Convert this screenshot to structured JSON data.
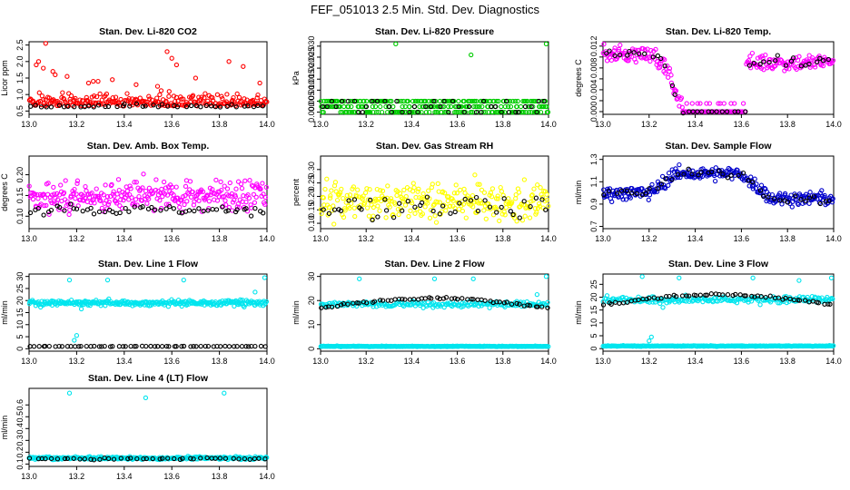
{
  "figure": {
    "title": "FEF_051013  2.5 Min. Std. Dev. Diagnostics"
  },
  "colors": {
    "red": "#ff0000",
    "green": "#00cc00",
    "magenta": "#ff00ff",
    "yellow": "#ffff00",
    "blue": "#0000cc",
    "cyan": "#00e5ee",
    "black": "#000000"
  },
  "chart_data": [
    {
      "type": "scatter",
      "title": "Stan. Dev. Li-820 CO2",
      "ylabel": "Licor ppm",
      "xlim": [
        13.0,
        14.0
      ],
      "ylim": [
        0.4,
        2.6
      ],
      "xticks": [
        13.0,
        13.2,
        13.4,
        13.6,
        13.8,
        14.0
      ],
      "xtick_labels": [
        "13.0",
        "13.2",
        "13.4",
        "13.6",
        "13.8",
        "14.0"
      ],
      "yticks": [
        0.5,
        1.0,
        1.5,
        2.0,
        2.5
      ],
      "ytick_labels": [
        "0.5",
        "1.0",
        "1.5",
        "2.0",
        "2.5"
      ],
      "series": [
        {
          "name": "all",
          "color": "#ff0000",
          "base": 0.75,
          "spread": 0.35,
          "n": 260,
          "outliers": [
            [
              13.07,
              2.55
            ],
            [
              13.03,
              1.9
            ],
            [
              13.04,
              2.0
            ],
            [
              13.06,
              1.8
            ],
            [
              13.1,
              1.7
            ],
            [
              13.11,
              1.6
            ],
            [
              13.16,
              1.55
            ],
            [
              13.25,
              1.35
            ],
            [
              13.27,
              1.4
            ],
            [
              13.29,
              1.4
            ],
            [
              13.35,
              1.45
            ],
            [
              13.45,
              1.3
            ],
            [
              13.54,
              1.25
            ],
            [
              13.58,
              2.3
            ],
            [
              13.6,
              2.1
            ],
            [
              13.62,
              1.9
            ],
            [
              13.7,
              1.5
            ],
            [
              13.84,
              2.0
            ],
            [
              13.9,
              1.85
            ],
            [
              13.97,
              1.35
            ]
          ]
        },
        {
          "name": "subset",
          "color": "#000000",
          "base": 0.62,
          "spread": 0.08,
          "n": 45
        }
      ]
    },
    {
      "type": "scatter",
      "title": "Stan. Dev. Li-820 Pressure",
      "ylabel": "kPa",
      "xlim": [
        13.0,
        14.0
      ],
      "ylim": [
        -0.001,
        0.032
      ],
      "xticks": [
        13.0,
        13.2,
        13.4,
        13.6,
        13.8,
        14.0
      ],
      "xtick_labels": [
        "13.0",
        "13.2",
        "13.4",
        "13.6",
        "13.8",
        "14.0"
      ],
      "yticks": [
        0.0,
        0.005,
        0.01,
        0.015,
        0.02,
        0.025,
        0.03
      ],
      "ytick_labels": [
        "0.000",
        "0.005",
        "0.010",
        "0.015",
        "0.020",
        "0.025",
        "0.030"
      ],
      "series": [
        {
          "name": "all",
          "color": "#00cc00",
          "levels": [
            0.0,
            0.0025,
            0.005
          ],
          "n": 300,
          "outliers": [
            [
              13.33,
              0.031
            ],
            [
              13.66,
              0.026
            ],
            [
              13.99,
              0.031
            ]
          ]
        },
        {
          "name": "subset",
          "color": "#000000",
          "levels": [
            0.0,
            0.0025,
            0.005
          ],
          "n": 45
        }
      ]
    },
    {
      "type": "scatter",
      "title": "Stan. Dev. Li-820 Temp.",
      "ylabel": "degrees C",
      "xlim": [
        13.0,
        14.0
      ],
      "ylim": [
        -0.0005,
        0.0128
      ],
      "xticks": [
        13.0,
        13.2,
        13.4,
        13.6,
        13.8,
        14.0
      ],
      "xtick_labels": [
        "13.0",
        "13.2",
        "13.4",
        "13.6",
        "13.8",
        "14.0"
      ],
      "yticks": [
        0.0,
        0.002,
        0.004,
        0.006,
        0.008,
        0.01,
        0.012
      ],
      "ytick_labels": [
        "0.000",
        "",
        "0.004",
        "",
        "0.008",
        "",
        "0.012"
      ],
      "series": [
        {
          "name": "all",
          "color": "#ff00ff",
          "n": 260
        },
        {
          "name": "subset",
          "color": "#000000",
          "n": 45
        }
      ]
    },
    {
      "type": "scatter",
      "title": "Stan. Dev. Amb. Box Temp.",
      "ylabel": "degrees C",
      "xlim": [
        13.0,
        14.0
      ],
      "ylim": [
        0.07,
        0.245
      ],
      "xticks": [
        13.0,
        13.2,
        13.4,
        13.6,
        13.8,
        14.0
      ],
      "xtick_labels": [
        "13.0",
        "13.2",
        "13.4",
        "13.6",
        "13.8",
        "14.0"
      ],
      "yticks": [
        0.1,
        0.15,
        0.2
      ],
      "ytick_labels": [
        "0.10",
        "0.15",
        "0.20"
      ],
      "series": [
        {
          "name": "all",
          "color": "#ff00ff",
          "base": 0.15,
          "spread": 0.035,
          "n": 300
        },
        {
          "name": "subset",
          "color": "#000000",
          "base": 0.115,
          "spread": 0.012,
          "n": 55
        }
      ]
    },
    {
      "type": "scatter",
      "title": "Stan. Dev. Gas Stream RH",
      "ylabel": "percent",
      "xlim": [
        13.0,
        14.0
      ],
      "ylim": [
        0.08,
        0.35
      ],
      "xticks": [
        13.0,
        13.2,
        13.4,
        13.6,
        13.8,
        14.0
      ],
      "xtick_labels": [
        "13.0",
        "13.2",
        "13.4",
        "13.6",
        "13.8",
        "14.0"
      ],
      "yticks": [
        0.1,
        0.15,
        0.2,
        0.25,
        0.3
      ],
      "ytick_labels": [
        "0.10",
        "0.15",
        "0.20",
        "0.25",
        "0.30"
      ],
      "series": [
        {
          "name": "all",
          "color": "#ffff00",
          "base": 0.18,
          "spread": 0.07,
          "n": 280
        },
        {
          "name": "subset",
          "color": "#000000",
          "base": 0.16,
          "spread": 0.05,
          "n": 45
        }
      ]
    },
    {
      "type": "scatter",
      "title": "Stan. Dev. Sample Flow",
      "ylabel": "ml/min",
      "xlim": [
        13.0,
        14.0
      ],
      "ylim": [
        0.68,
        1.33
      ],
      "xticks": [
        13.0,
        13.2,
        13.4,
        13.6,
        13.8,
        14.0
      ],
      "xtick_labels": [
        "13.0",
        "13.2",
        "13.4",
        "13.6",
        "13.8",
        "14.0"
      ],
      "yticks": [
        0.7,
        0.9,
        1.1,
        1.3
      ],
      "ytick_labels": [
        "0.7",
        "0.9",
        "1.1",
        "1.3"
      ],
      "series": [
        {
          "name": "all",
          "color": "#0000cc",
          "n": 280
        },
        {
          "name": "subset",
          "color": "#000000",
          "n": 45
        }
      ]
    },
    {
      "type": "scatter",
      "title": "Stan. Dev. Line 1 Flow",
      "ylabel": "ml/min",
      "xlim": [
        13.0,
        14.0
      ],
      "ylim": [
        -1,
        31
      ],
      "xticks": [
        13.0,
        13.2,
        13.4,
        13.6,
        13.8,
        14.0
      ],
      "xtick_labels": [
        "13.0",
        "13.2",
        "13.4",
        "13.6",
        "13.8",
        "14.0"
      ],
      "yticks": [
        0,
        5,
        10,
        15,
        20,
        25,
        30
      ],
      "ytick_labels": [
        "0",
        "5",
        "10",
        "15",
        "20",
        "25",
        "30"
      ],
      "series": [
        {
          "name": "band",
          "color": "#00e5ee",
          "base": 19,
          "spread": 1.2,
          "n": 300,
          "outliers": [
            [
              13.17,
              28.5
            ],
            [
              13.33,
              28.5
            ],
            [
              13.65,
              28.5
            ],
            [
              13.95,
              23.5
            ],
            [
              13.99,
              29.5
            ],
            [
              13.2,
              5.5
            ],
            [
              13.19,
              3.5
            ],
            [
              13.22,
              16.5
            ]
          ]
        },
        {
          "name": "floor",
          "color": "#000000",
          "base": 1,
          "spread": 0.1,
          "n": 60
        }
      ]
    },
    {
      "type": "scatter",
      "title": "Stan. Dev. Line 2 Flow",
      "ylabel": "ml/min",
      "xlim": [
        13.0,
        14.0
      ],
      "ylim": [
        -1,
        31
      ],
      "xticks": [
        13.0,
        13.2,
        13.4,
        13.6,
        13.8,
        14.0
      ],
      "xtick_labels": [
        "13.0",
        "13.2",
        "13.4",
        "13.6",
        "13.8",
        "14.0"
      ],
      "yticks": [
        0,
        10,
        20,
        30
      ],
      "ytick_labels": [
        "0",
        "10",
        "20",
        "30"
      ],
      "series": [
        {
          "name": "floor",
          "color": "#00e5ee",
          "base": 1,
          "spread": 0.15,
          "n": 300
        },
        {
          "name": "band",
          "color": "#00e5ee",
          "base": 18.5,
          "spread": 1.2,
          "n": 200,
          "outliers": [
            [
              13.17,
              29
            ],
            [
              13.5,
              29
            ],
            [
              13.67,
              29
            ],
            [
              13.99,
              30
            ],
            [
              13.95,
              22.5
            ]
          ]
        },
        {
          "name": "subset",
          "color": "#000000",
          "n": 60
        }
      ]
    },
    {
      "type": "scatter",
      "title": "Stan. Dev. Line 3 Flow",
      "ylabel": "ml/min",
      "xlim": [
        13.0,
        14.0
      ],
      "ylim": [
        -1,
        29
      ],
      "xticks": [
        13.0,
        13.2,
        13.4,
        13.6,
        13.8,
        14.0
      ],
      "xtick_labels": [
        "13.0",
        "13.2",
        "13.4",
        "13.6",
        "13.8",
        "14.0"
      ],
      "yticks": [
        0,
        5,
        10,
        15,
        20,
        25
      ],
      "ytick_labels": [
        "0",
        "5",
        "10",
        "15",
        "20",
        "25"
      ],
      "series": [
        {
          "name": "floor",
          "color": "#00e5ee",
          "base": 1,
          "spread": 0.15,
          "n": 300,
          "outliers": [
            [
              13.21,
              4.5
            ],
            [
              13.2,
              3
            ]
          ]
        },
        {
          "name": "band",
          "color": "#00e5ee",
          "base": 19,
          "spread": 1.2,
          "n": 200,
          "outliers": [
            [
              13.17,
              28
            ],
            [
              13.33,
              27.5
            ],
            [
              13.65,
              27.5
            ],
            [
              13.85,
              26.5
            ],
            [
              13.99,
              27.5
            ],
            [
              13.26,
              16
            ]
          ]
        },
        {
          "name": "subset",
          "color": "#000000",
          "n": 60
        }
      ]
    },
    {
      "type": "scatter",
      "title": "Stan. Dev. Line 4 (LT) Flow",
      "ylabel": "ml/min",
      "xlim": [
        13.0,
        14.0
      ],
      "ylim": [
        0.08,
        0.74
      ],
      "xticks": [
        13.0,
        13.2,
        13.4,
        13.6,
        13.8,
        14.0
      ],
      "xtick_labels": [
        "13.0",
        "13.2",
        "13.4",
        "13.6",
        "13.8",
        "14.0"
      ],
      "yticks": [
        0.1,
        0.2,
        0.3,
        0.4,
        0.5,
        0.6
      ],
      "ytick_labels": [
        "0.1",
        "0.2",
        "0.3",
        "0.4",
        "0.5",
        "0.6"
      ],
      "series": [
        {
          "name": "all",
          "color": "#00e5ee",
          "base": 0.15,
          "spread": 0.012,
          "n": 300,
          "outliers": [
            [
              13.17,
              0.7
            ],
            [
              13.49,
              0.66
            ],
            [
              13.82,
              0.7
            ]
          ]
        },
        {
          "name": "subset",
          "color": "#000000",
          "base": 0.145,
          "spread": 0.008,
          "n": 45
        }
      ]
    }
  ]
}
